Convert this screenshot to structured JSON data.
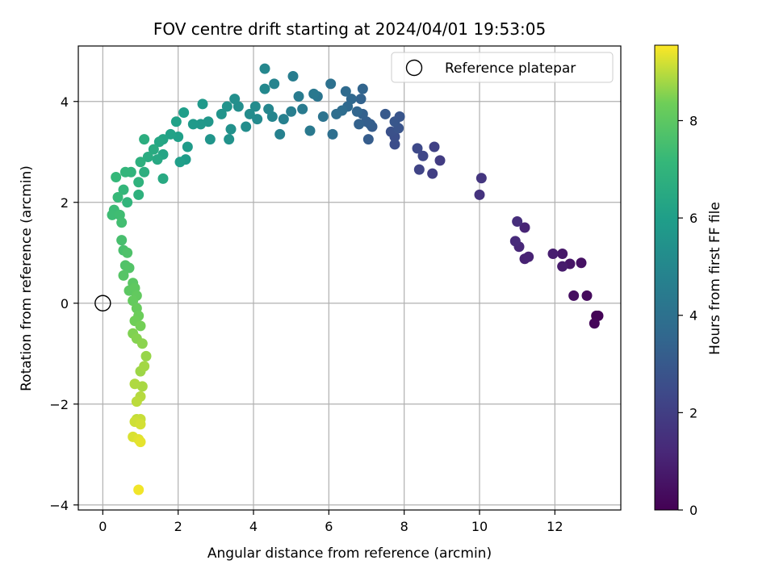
{
  "chart_data": {
    "type": "scatter",
    "title": "FOV centre drift starting at 2024/04/01 19:53:05",
    "xlabel": "Angular distance from reference (arcmin)",
    "ylabel": "Rotation from reference (arcmin)",
    "xlim": [
      -0.65,
      13.75
    ],
    "ylim": [
      -4.1,
      5.1
    ],
    "xticks": [
      0,
      2,
      4,
      6,
      8,
      10,
      12
    ],
    "yticks": [
      -4,
      -2,
      0,
      2,
      4
    ],
    "grid": true,
    "legend_position": "top-right",
    "legend": [
      {
        "label": "Reference platepar",
        "marker": "open-circle"
      }
    ],
    "reference_point": {
      "x": 0,
      "y": 0
    },
    "colorbar": {
      "label": "Hours from first FF file",
      "colormap": "viridis",
      "range": [
        0,
        9.55
      ],
      "ticks": [
        0,
        2,
        4,
        6,
        8
      ]
    },
    "points": [
      [
        13.1,
        -0.25,
        0.05
      ],
      [
        13.15,
        -0.25,
        0.1
      ],
      [
        13.05,
        -0.4,
        0.15
      ],
      [
        12.85,
        0.15,
        0.3
      ],
      [
        12.5,
        0.15,
        0.4
      ],
      [
        12.7,
        0.8,
        0.5
      ],
      [
        12.4,
        0.78,
        0.6
      ],
      [
        12.2,
        0.98,
        0.7
      ],
      [
        12.2,
        0.73,
        0.8
      ],
      [
        11.95,
        0.98,
        0.9
      ],
      [
        11.2,
        0.88,
        1.0
      ],
      [
        11.3,
        0.92,
        1.05
      ],
      [
        11.2,
        1.5,
        1.1
      ],
      [
        11.05,
        1.12,
        1.2
      ],
      [
        10.95,
        1.23,
        1.3
      ],
      [
        11.0,
        1.62,
        1.4
      ],
      [
        10.0,
        2.15,
        1.6
      ],
      [
        10.05,
        2.48,
        1.7
      ],
      [
        8.95,
        2.83,
        1.9
      ],
      [
        8.75,
        2.57,
        2.0
      ],
      [
        8.8,
        3.1,
        2.1
      ],
      [
        8.4,
        2.65,
        2.2
      ],
      [
        8.5,
        2.92,
        2.3
      ],
      [
        8.35,
        3.07,
        2.4
      ],
      [
        7.75,
        3.15,
        2.55
      ],
      [
        7.75,
        3.3,
        2.6
      ],
      [
        7.65,
        3.4,
        2.7
      ],
      [
        7.85,
        3.47,
        2.8
      ],
      [
        7.88,
        3.7,
        2.85
      ],
      [
        7.75,
        3.6,
        2.9
      ],
      [
        7.5,
        3.75,
        3.0
      ],
      [
        7.15,
        3.5,
        3.1
      ],
      [
        7.05,
        3.25,
        3.15
      ],
      [
        7.1,
        3.55,
        3.2
      ],
      [
        7.0,
        3.6,
        3.25
      ],
      [
        6.9,
        3.75,
        3.3
      ],
      [
        6.8,
        3.55,
        3.35
      ],
      [
        6.85,
        4.05,
        3.4
      ],
      [
        6.9,
        4.25,
        3.45
      ],
      [
        6.75,
        3.8,
        3.5
      ],
      [
        6.6,
        4.05,
        3.6
      ],
      [
        6.5,
        3.9,
        3.65
      ],
      [
        6.45,
        4.2,
        3.7
      ],
      [
        6.35,
        3.82,
        3.8
      ],
      [
        6.2,
        3.75,
        3.85
      ],
      [
        6.1,
        3.35,
        3.9
      ],
      [
        6.05,
        4.35,
        4.0
      ],
      [
        5.85,
        3.7,
        4.1
      ],
      [
        5.7,
        4.1,
        4.2
      ],
      [
        5.6,
        4.15,
        4.3
      ],
      [
        5.5,
        3.42,
        4.35
      ],
      [
        5.3,
        3.85,
        4.4
      ],
      [
        5.2,
        4.1,
        4.45
      ],
      [
        5.05,
        4.5,
        4.55
      ],
      [
        5.0,
        3.8,
        4.6
      ],
      [
        4.8,
        3.65,
        4.7
      ],
      [
        4.7,
        3.35,
        4.75
      ],
      [
        4.55,
        4.35,
        4.85
      ],
      [
        4.5,
        3.7,
        4.9
      ],
      [
        4.4,
        3.85,
        4.95
      ],
      [
        4.3,
        4.65,
        5.0
      ],
      [
        4.3,
        4.25,
        5.05
      ],
      [
        4.1,
        3.65,
        5.1
      ],
      [
        4.05,
        3.9,
        5.15
      ],
      [
        3.9,
        3.75,
        5.2
      ],
      [
        3.8,
        3.5,
        5.25
      ],
      [
        3.6,
        3.9,
        5.3
      ],
      [
        3.5,
        4.05,
        5.35
      ],
      [
        3.4,
        3.45,
        5.4
      ],
      [
        3.35,
        3.25,
        5.45
      ],
      [
        3.3,
        3.9,
        5.5
      ],
      [
        3.15,
        3.75,
        5.55
      ],
      [
        2.85,
        3.25,
        5.6
      ],
      [
        2.8,
        3.6,
        5.65
      ],
      [
        2.6,
        3.55,
        5.7
      ],
      [
        2.65,
        3.95,
        5.75
      ],
      [
        2.4,
        3.55,
        5.8
      ],
      [
        2.25,
        3.1,
        5.85
      ],
      [
        2.2,
        2.85,
        5.9
      ],
      [
        2.15,
        3.78,
        5.95
      ],
      [
        2.05,
        2.8,
        6.0
      ],
      [
        2.0,
        3.3,
        6.05
      ],
      [
        1.95,
        3.6,
        6.1
      ],
      [
        1.8,
        3.35,
        6.15
      ],
      [
        1.6,
        3.25,
        6.25
      ],
      [
        1.6,
        2.95,
        6.3
      ],
      [
        1.5,
        3.2,
        6.35
      ],
      [
        1.45,
        2.85,
        6.45
      ],
      [
        1.6,
        2.47,
        6.5
      ],
      [
        1.35,
        3.05,
        6.55
      ],
      [
        1.2,
        2.9,
        6.6
      ],
      [
        1.1,
        3.25,
        6.7
      ],
      [
        1.1,
        2.6,
        6.75
      ],
      [
        1.0,
        2.8,
        6.8
      ],
      [
        0.95,
        2.15,
        6.85
      ],
      [
        0.95,
        2.4,
        6.9
      ],
      [
        0.75,
        2.6,
        6.95
      ],
      [
        0.65,
        2.0,
        7.0
      ],
      [
        0.6,
        2.6,
        7.05
      ],
      [
        0.55,
        2.25,
        7.1
      ],
      [
        0.35,
        2.5,
        7.15
      ],
      [
        0.4,
        2.1,
        7.2
      ],
      [
        0.3,
        1.85,
        7.3
      ],
      [
        0.25,
        1.75,
        7.35
      ],
      [
        0.45,
        1.75,
        7.4
      ],
      [
        0.5,
        1.6,
        7.45
      ],
      [
        0.5,
        1.25,
        7.55
      ],
      [
        0.55,
        1.05,
        7.6
      ],
      [
        0.65,
        1.0,
        7.7
      ],
      [
        0.6,
        0.75,
        7.75
      ],
      [
        0.7,
        0.7,
        7.8
      ],
      [
        0.55,
        0.55,
        7.85
      ],
      [
        0.8,
        0.4,
        7.95
      ],
      [
        0.7,
        0.25,
        8.0
      ],
      [
        0.85,
        0.3,
        8.05
      ],
      [
        0.9,
        0.15,
        8.1
      ],
      [
        0.8,
        0.05,
        8.15
      ],
      [
        0.9,
        -0.1,
        8.2
      ],
      [
        0.95,
        -0.25,
        8.3
      ],
      [
        0.85,
        -0.35,
        8.35
      ],
      [
        1.0,
        -0.45,
        8.4
      ],
      [
        0.8,
        -0.6,
        8.5
      ],
      [
        0.9,
        -0.7,
        8.55
      ],
      [
        1.05,
        -0.8,
        8.6
      ],
      [
        1.15,
        -1.05,
        8.7
      ],
      [
        1.0,
        -1.35,
        8.75
      ],
      [
        1.1,
        -1.25,
        8.8
      ],
      [
        1.05,
        -1.65,
        8.85
      ],
      [
        0.85,
        -1.6,
        8.9
      ],
      [
        1.0,
        -1.85,
        8.95
      ],
      [
        0.9,
        -1.95,
        9.0
      ],
      [
        0.9,
        -2.3,
        9.05
      ],
      [
        1.0,
        -2.3,
        9.1
      ],
      [
        0.85,
        -2.35,
        9.15
      ],
      [
        1.0,
        -2.4,
        9.2
      ],
      [
        0.8,
        -2.65,
        9.25
      ],
      [
        0.95,
        -2.7,
        9.3
      ],
      [
        1.0,
        -2.75,
        9.35
      ],
      [
        0.95,
        -3.7,
        9.45
      ]
    ]
  }
}
